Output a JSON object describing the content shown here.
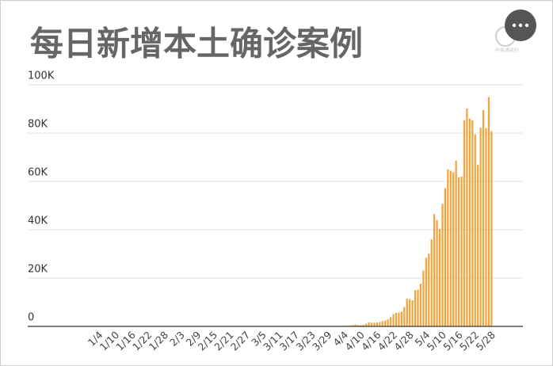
{
  "chart_data": {
    "type": "bar",
    "title": "每日新增本土确诊案例",
    "categories": [
      null,
      null,
      null,
      "1/4",
      null,
      null,
      null,
      null,
      null,
      "1/10",
      null,
      null,
      null,
      null,
      null,
      "1/16",
      null,
      null,
      null,
      null,
      null,
      "1/22",
      null,
      null,
      null,
      null,
      null,
      "1/28",
      null,
      null,
      null,
      null,
      null,
      "2/3",
      null,
      null,
      null,
      null,
      null,
      "2/9",
      null,
      null,
      null,
      null,
      null,
      "2/15",
      null,
      null,
      null,
      null,
      null,
      "2/21",
      null,
      null,
      null,
      null,
      null,
      "2/27",
      null,
      null,
      null,
      null,
      null,
      "3/5",
      null,
      null,
      null,
      null,
      null,
      "3/11",
      null,
      null,
      null,
      null,
      null,
      "3/17",
      null,
      null,
      null,
      null,
      null,
      "3/23",
      null,
      null,
      null,
      null,
      null,
      "3/29",
      null,
      null,
      null,
      null,
      null,
      "4/4",
      null,
      null,
      null,
      null,
      null,
      "4/10",
      null,
      null,
      null,
      null,
      null,
      "4/16",
      null,
      null,
      null,
      null,
      null,
      "4/22",
      null,
      null,
      null,
      null,
      null,
      "4/28",
      null,
      null,
      null,
      null,
      null,
      "5/4",
      null,
      null,
      null,
      null,
      null,
      "5/10",
      null,
      null,
      null,
      null,
      null,
      "5/16",
      null,
      null,
      null,
      null,
      null,
      "5/22",
      null,
      null,
      null,
      null,
      null,
      "5/28"
    ],
    "values": [
      12,
      8,
      10,
      15,
      20,
      25,
      30,
      40,
      55,
      50,
      45,
      60,
      40,
      30,
      25,
      30,
      20,
      22,
      18,
      15,
      20,
      18,
      15,
      12,
      15,
      18,
      20,
      15,
      12,
      10,
      14,
      15,
      12,
      10,
      20,
      25,
      30,
      28,
      35,
      30,
      25,
      22,
      20,
      18,
      25,
      30,
      35,
      40,
      38,
      30,
      28,
      25,
      22,
      20,
      25,
      30,
      28,
      32,
      35,
      40,
      45,
      50,
      55,
      60,
      58,
      62,
      70,
      68,
      75,
      80,
      72,
      66,
      60,
      55,
      58,
      62,
      70,
      75,
      80,
      85,
      90,
      95,
      88,
      80,
      85,
      92,
      100,
      110,
      95,
      105,
      88,
      140,
      200,
      263,
      360,
      430,
      560,
      760,
      590,
      520,
      690,
      1100,
      1700,
      1550,
      1500,
      1600,
      1770,
      2240,
      2420,
      2860,
      3780,
      5080,
      5600,
      5790,
      6070,
      8010,
      11500,
      11300,
      10800,
      15000,
      15200,
      17700,
      23100,
      28400,
      30100,
      36000,
      46500,
      44000,
      40300,
      50700,
      57200,
      65000,
      64400,
      63800,
      68600,
      61700,
      62000,
      85400,
      90200,
      86000,
      85300,
      79500,
      66800,
      82200,
      89500,
      82000,
      94900,
      80800
    ],
    "color": "#f2a33a",
    "ylim": [
      0,
      100000
    ],
    "yticks": [
      0,
      {
        "value": 20000,
        "label": "20K"
      },
      {
        "value": 40000,
        "label": "40K"
      },
      {
        "value": 60000,
        "label": "60K"
      },
      {
        "value": 80000,
        "label": "80K"
      },
      {
        "value": 100000,
        "label": "100K"
      }
    ],
    "grid": true
  },
  "logo": "中央通訊社"
}
